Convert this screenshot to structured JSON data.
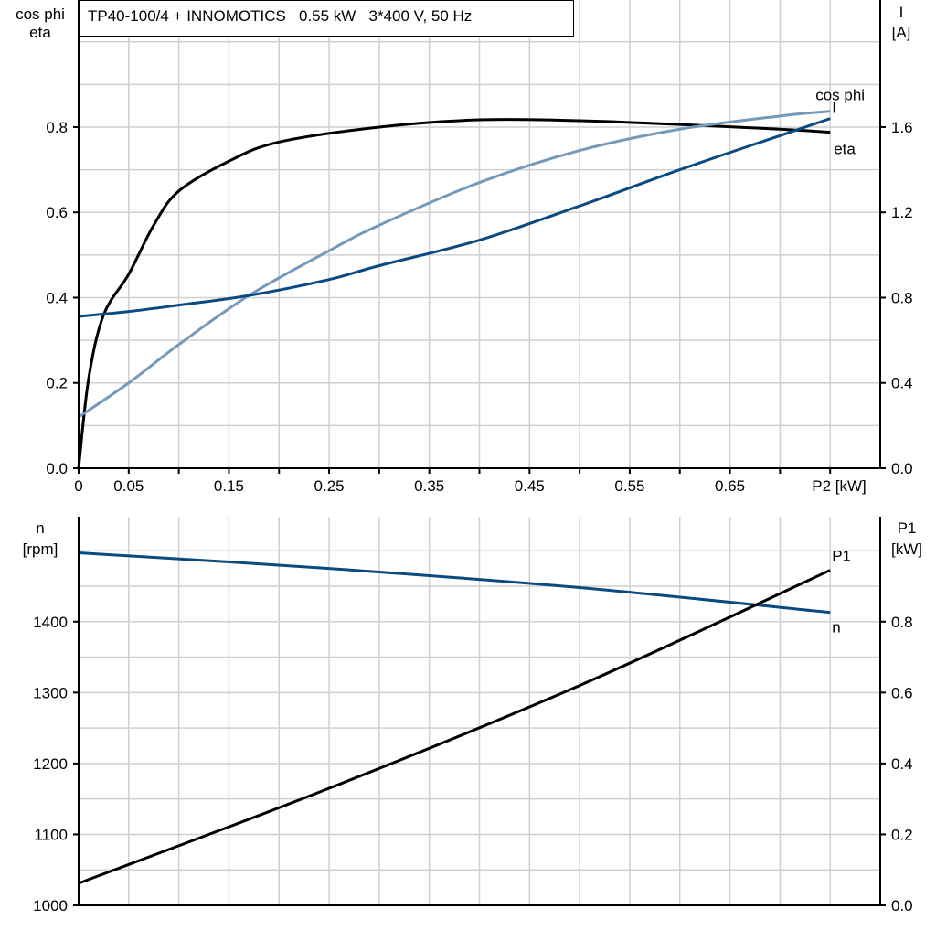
{
  "title": "TP40-100/4 + INNOMOTICS   0.55 kW   3*400 V, 50 Hz",
  "chart_data": [
    {
      "type": "line",
      "ylabel_left": [
        "cos phi",
        "eta"
      ],
      "ylabel_right": [
        "I",
        "[A]"
      ],
      "xlabel": "P2 [kW]",
      "x_ticks": [
        "0",
        "0.05",
        "0.15",
        "0.25",
        "0.35",
        "0.45",
        "0.55",
        "0.65"
      ],
      "x_tick_values": [
        0,
        0.05,
        0.15,
        0.25,
        0.35,
        0.45,
        0.55,
        0.65
      ],
      "xlim": [
        0,
        0.8
      ],
      "ylim_left": [
        0,
        1.098
      ],
      "ylim_right": [
        0,
        2.196
      ],
      "y_ticks_left": [
        "0.0",
        "0.2",
        "0.4",
        "0.6",
        "0.8"
      ],
      "y_ticks_right": [
        "0.0",
        "0.4",
        "0.8",
        "1.2",
        "1.6"
      ],
      "grid": true,
      "series": [
        {
          "name": "eta",
          "axis": "left",
          "color": "#000000",
          "x": [
            0,
            0.01,
            0.025,
            0.05,
            0.075,
            0.1,
            0.15,
            0.2,
            0.3,
            0.4,
            0.5,
            0.6,
            0.7,
            0.75
          ],
          "y": [
            0,
            0.21,
            0.36,
            0.455,
            0.57,
            0.65,
            0.72,
            0.765,
            0.8,
            0.817,
            0.815,
            0.806,
            0.795,
            0.788
          ]
        },
        {
          "name": "cos phi",
          "axis": "left",
          "color": "#7399bb",
          "x": [
            0,
            0.05,
            0.1,
            0.17,
            0.25,
            0.3,
            0.4,
            0.5,
            0.6,
            0.7,
            0.75
          ],
          "y": [
            0.12,
            0.2,
            0.29,
            0.405,
            0.51,
            0.57,
            0.67,
            0.745,
            0.795,
            0.826,
            0.837
          ]
        },
        {
          "name": "I",
          "axis": "right",
          "color": "#0a4a80",
          "x": [
            0,
            0.05,
            0.1,
            0.17,
            0.25,
            0.3,
            0.4,
            0.5,
            0.6,
            0.7,
            0.75
          ],
          "y": [
            0.712,
            0.735,
            0.765,
            0.81,
            0.885,
            0.95,
            1.07,
            1.23,
            1.4,
            1.56,
            1.64
          ]
        }
      ]
    },
    {
      "type": "line",
      "ylabel_left": [
        "n",
        "[rpm]"
      ],
      "ylabel_right": [
        "P1",
        "[kW]"
      ],
      "xlim": [
        0,
        0.8
      ],
      "ylim_left": [
        1000,
        1548
      ],
      "ylim_right": [
        0,
        1.096
      ],
      "y_ticks_left": [
        "1000",
        "1100",
        "1200",
        "1300",
        "1400"
      ],
      "y_ticks_right": [
        "0.0",
        "0.2",
        "0.4",
        "0.6",
        "0.8"
      ],
      "grid": true,
      "series": [
        {
          "name": "n",
          "axis": "left",
          "color": "#0a4a80",
          "x": [
            0,
            0.25,
            0.5,
            0.75
          ],
          "y": [
            1497,
            1475,
            1448,
            1413
          ]
        },
        {
          "name": "P1",
          "axis": "right",
          "color": "#000000",
          "x": [
            0,
            0.25,
            0.5,
            0.75
          ],
          "y": [
            0.062,
            0.33,
            0.62,
            0.945
          ]
        }
      ]
    }
  ]
}
